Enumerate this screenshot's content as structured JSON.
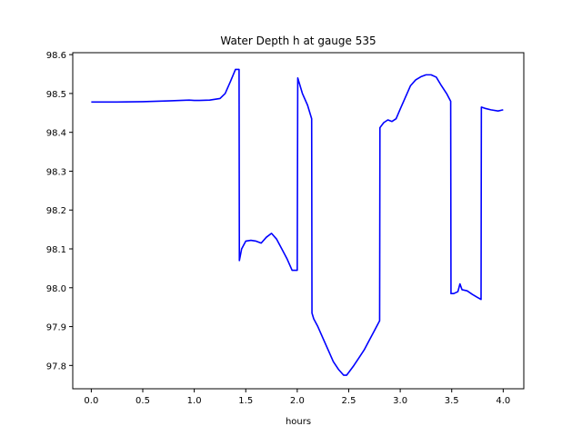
{
  "chart_data": {
    "type": "line",
    "title": "Water Depth h at gauge 535",
    "xlabel": "hours",
    "ylabel": "",
    "xlim": [
      -0.18,
      4.2
    ],
    "ylim": [
      97.74,
      98.605
    ],
    "xticks": [
      0.0,
      0.5,
      1.0,
      1.5,
      2.0,
      2.5,
      3.0,
      3.5,
      4.0
    ],
    "xtick_labels": [
      "0.0",
      "0.5",
      "1.0",
      "1.5",
      "2.0",
      "2.5",
      "3.0",
      "3.5",
      "4.0"
    ],
    "yticks": [
      97.8,
      97.9,
      98.0,
      98.1,
      98.2,
      98.3,
      98.4,
      98.5,
      98.6
    ],
    "ytick_labels": [
      "97.8",
      "97.9",
      "98.0",
      "98.1",
      "98.2",
      "98.3",
      "98.4",
      "98.5",
      "98.6"
    ],
    "grid": false,
    "line_color": "#0000ff",
    "series": [
      {
        "x": [
          0.0,
          0.25,
          0.5,
          0.75,
          0.95,
          1.0,
          1.05,
          1.15,
          1.25,
          1.3,
          1.35,
          1.4,
          1.435,
          1.438,
          1.46,
          1.5,
          1.55,
          1.6,
          1.65,
          1.7,
          1.75,
          1.8,
          1.85,
          1.9,
          1.95,
          2.0,
          2.005,
          2.05,
          2.1,
          2.14,
          2.143,
          2.16,
          2.2,
          2.25,
          2.3,
          2.35,
          2.4,
          2.45,
          2.48,
          2.5,
          2.55,
          2.6,
          2.65,
          2.7,
          2.75,
          2.8,
          2.803,
          2.84,
          2.88,
          2.92,
          2.96,
          3.0,
          3.05,
          3.1,
          3.15,
          3.2,
          3.25,
          3.3,
          3.35,
          3.4,
          3.45,
          3.49,
          3.493,
          3.52,
          3.56,
          3.58,
          3.6,
          3.65,
          3.7,
          3.75,
          3.785,
          3.788,
          3.82,
          3.88,
          3.95,
          4.0
        ],
        "y": [
          98.478,
          98.478,
          98.479,
          98.481,
          98.483,
          98.482,
          98.482,
          98.483,
          98.487,
          98.5,
          98.53,
          98.562,
          98.562,
          98.07,
          98.1,
          98.12,
          98.122,
          98.12,
          98.115,
          98.13,
          98.14,
          98.125,
          98.1,
          98.075,
          98.045,
          98.045,
          98.54,
          98.5,
          98.47,
          98.435,
          97.935,
          97.92,
          97.9,
          97.87,
          97.84,
          97.81,
          97.79,
          97.775,
          97.775,
          97.782,
          97.8,
          97.82,
          97.84,
          97.865,
          97.89,
          97.915,
          98.412,
          98.425,
          98.432,
          98.428,
          98.435,
          98.46,
          98.49,
          98.52,
          98.535,
          98.543,
          98.548,
          98.548,
          98.542,
          98.52,
          98.5,
          98.48,
          97.985,
          97.985,
          97.99,
          98.01,
          97.995,
          97.992,
          97.983,
          97.975,
          97.97,
          98.465,
          98.462,
          98.458,
          98.455,
          98.458
        ]
      }
    ]
  }
}
